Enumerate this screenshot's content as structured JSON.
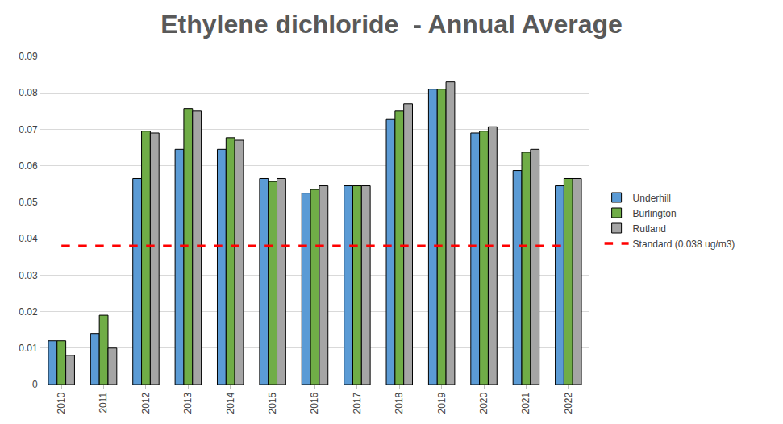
{
  "chart_data": {
    "type": "bar",
    "title": "Ethylene dichloride  - Annual Average",
    "categories": [
      "2010",
      "2011",
      "2012",
      "2013",
      "2014",
      "2015",
      "2016",
      "2017",
      "2018",
      "2019",
      "2020",
      "2021",
      "2022"
    ],
    "series": [
      {
        "name": "Underhill",
        "color": "#5B9BD5",
        "type": "bar",
        "values": [
          0.012,
          0.014,
          0.0565,
          0.0645,
          0.0645,
          0.0565,
          0.0525,
          0.0545,
          0.0727,
          0.081,
          0.069,
          0.0587,
          0.0545
        ]
      },
      {
        "name": "Burlington",
        "color": "#70AD47",
        "type": "bar",
        "values": [
          0.012,
          0.019,
          0.0695,
          0.0757,
          0.0677,
          0.0557,
          0.0535,
          0.0545,
          0.075,
          0.081,
          0.0695,
          0.0637,
          0.0565
        ]
      },
      {
        "name": "Rutland",
        "color": "#A5A5A5",
        "type": "bar",
        "values": [
          0.008,
          0.01,
          0.069,
          0.075,
          0.067,
          0.0565,
          0.0545,
          0.0545,
          0.077,
          0.083,
          0.0707,
          0.0645,
          0.0565
        ]
      },
      {
        "name": "Standard (0.038 ug/m3)",
        "color": "#FF0000",
        "type": "line",
        "line_style": "dashed",
        "values": [
          0.038,
          0.038,
          0.038,
          0.038,
          0.038,
          0.038,
          0.038,
          0.038,
          0.038,
          0.038,
          0.038,
          0.038,
          0.038
        ]
      }
    ],
    "ylim": [
      0,
      0.09
    ],
    "yticks": [
      0,
      0.01,
      0.02,
      0.03,
      0.04,
      0.05,
      0.06,
      0.07,
      0.08,
      0.09
    ],
    "grid": true,
    "legend": "right"
  }
}
